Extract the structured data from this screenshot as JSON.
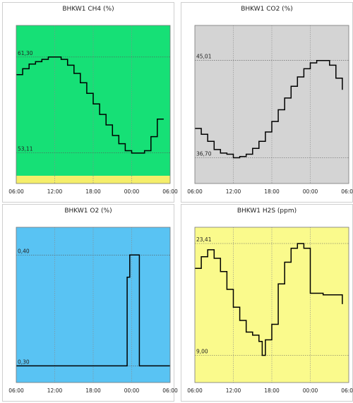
{
  "chart_data": [
    {
      "type": "line",
      "title": "BHKW1 CH4  (%)",
      "background": "#16e076",
      "footer_band": "#f5ee6a",
      "x_ticks": [
        "06:00",
        "12:00",
        "18:00",
        "00:00",
        "06:00"
      ],
      "xlim": [
        0,
        24
      ],
      "ylim": [
        50.5,
        64.0
      ],
      "reference_lines": [
        {
          "label": "61,30",
          "value": 61.3
        },
        {
          "label": "53,11",
          "value": 53.11
        }
      ],
      "series": [
        {
          "x": [
            0,
            1,
            2,
            3,
            4,
            5,
            6,
            7,
            8,
            9,
            10,
            11,
            12,
            13,
            14,
            15,
            16,
            17,
            18,
            19,
            20,
            21,
            22,
            23
          ],
          "y": [
            59.8,
            60.3,
            60.7,
            60.9,
            61.1,
            61.3,
            61.3,
            61.1,
            60.6,
            59.9,
            59.1,
            58.2,
            57.3,
            56.4,
            55.5,
            54.6,
            53.9,
            53.3,
            53.1,
            53.1,
            53.3,
            54.5,
            56.0,
            56.0
          ]
        }
      ]
    },
    {
      "type": "line",
      "title": "BHKW1 CO2  (%)",
      "background": "#d4d4d4",
      "x_ticks": [
        "06:00",
        "12:00",
        "18:00",
        "00:00",
        "06:00"
      ],
      "xlim": [
        0,
        24
      ],
      "ylim": [
        34.5,
        48.0
      ],
      "reference_lines": [
        {
          "label": "45,01",
          "value": 45.01
        },
        {
          "label": "36,70",
          "value": 36.7
        }
      ],
      "series": [
        {
          "x": [
            0,
            1,
            2,
            3,
            4,
            5,
            6,
            7,
            8,
            9,
            10,
            11,
            12,
            13,
            14,
            15,
            16,
            17,
            18,
            19,
            20,
            21,
            22,
            23
          ],
          "y": [
            39.2,
            38.7,
            38.1,
            37.4,
            37.1,
            37.0,
            36.7,
            36.8,
            37.0,
            37.5,
            38.1,
            38.9,
            39.8,
            40.8,
            41.8,
            42.8,
            43.6,
            44.3,
            44.8,
            45.0,
            45.0,
            44.6,
            43.5,
            42.5
          ]
        }
      ]
    },
    {
      "type": "line",
      "title": "BHKW1 O2  (%)",
      "background": "#59c3f3",
      "x_ticks": [
        "06:00",
        "12:00",
        "18:00",
        "00:00",
        "06:00"
      ],
      "xlim": [
        0,
        24
      ],
      "ylim": [
        0.285,
        0.425
      ],
      "reference_lines": [
        {
          "label": "0,40",
          "value": 0.4
        },
        {
          "label": "0,30",
          "value": 0.3
        }
      ],
      "series": [
        {
          "x": [
            0,
            16.5,
            17.3,
            17.7,
            18.8,
            19.2,
            24
          ],
          "y": [
            0.3,
            0.3,
            0.38,
            0.4,
            0.4,
            0.3,
            0.3
          ]
        }
      ]
    },
    {
      "type": "line",
      "title": "BHKW1 H2S (ppm)",
      "background": "#fafa8c",
      "x_ticks": [
        "06:00",
        "12:00",
        "18:00",
        "00:00",
        "06:00"
      ],
      "xlim": [
        0,
        24
      ],
      "ylim": [
        5.5,
        25.5
      ],
      "reference_lines": [
        {
          "label": "23,41",
          "value": 23.41
        },
        {
          "label": "9,00",
          "value": 9.0
        }
      ],
      "series": [
        {
          "x": [
            0,
            1,
            2,
            3,
            4,
            5,
            6,
            7,
            8,
            9,
            10,
            10.5,
            11,
            12,
            13,
            14,
            15,
            16,
            17,
            18,
            19,
            20,
            21,
            22,
            23
          ],
          "y": [
            20.2,
            21.7,
            22.6,
            21.5,
            19.8,
            17.5,
            15.2,
            13.5,
            12.0,
            11.6,
            10.8,
            9.0,
            11.0,
            13.0,
            18.2,
            21.0,
            22.8,
            23.4,
            22.8,
            17.0,
            17.0,
            16.8,
            16.8,
            16.8,
            15.6
          ]
        }
      ]
    }
  ]
}
